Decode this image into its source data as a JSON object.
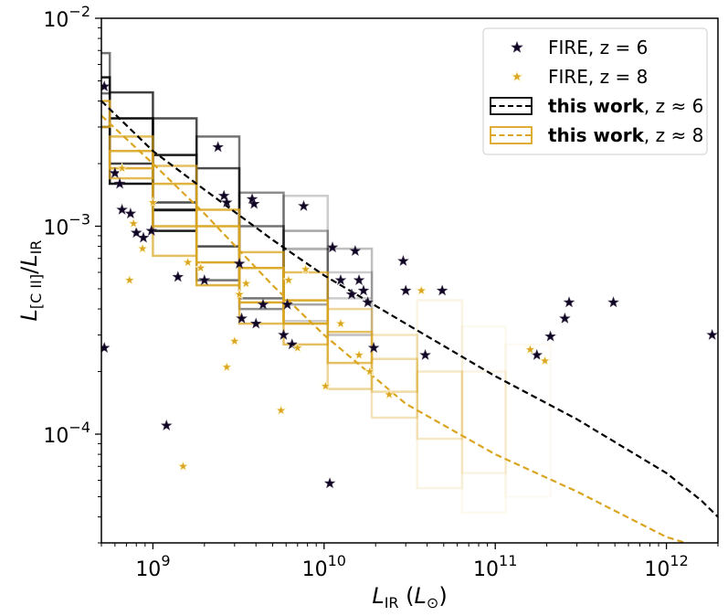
{
  "chart_data": {
    "type": "scatter",
    "xlabel": "L_IR (L_⊙)",
    "ylabel": "L_[C II]/L_IR",
    "xscale": "log",
    "yscale": "log",
    "xlim": [
      500000000.0,
      2000000000000.0
    ],
    "ylim": [
      3e-05,
      0.01
    ],
    "xticks": [
      {
        "base": "10",
        "exp": "9",
        "value": 1000000000.0
      },
      {
        "base": "10",
        "exp": "10",
        "value": 10000000000.0
      },
      {
        "base": "10",
        "exp": "11",
        "value": 100000000000.0
      },
      {
        "base": "10",
        "exp": "12",
        "value": 1000000000000.0
      }
    ],
    "yticks": [
      {
        "base": "10",
        "exp": "−4",
        "value": 0.0001
      },
      {
        "base": "10",
        "exp": "−3",
        "value": 0.001
      },
      {
        "base": "10",
        "exp": "−2",
        "value": 0.01
      }
    ],
    "grid": false,
    "legend_position": "top-right",
    "colors": {
      "z6": "#0d0221",
      "z8": "#daa520",
      "z6_line": "#000000",
      "z8_line": "#daa520"
    },
    "series": [
      {
        "name": "FIRE, z = 6",
        "label_main": "FIRE, z = 6",
        "marker": "star-filled",
        "color": "#0d0221",
        "points": [
          [
            520000000.0,
            0.0047
          ],
          [
            520000000.0,
            0.00026
          ],
          [
            600000000.0,
            0.0018
          ],
          [
            640000000.0,
            0.0016
          ],
          [
            660000000.0,
            0.0012
          ],
          [
            740000000.0,
            0.00115
          ],
          [
            800000000.0,
            0.00093
          ],
          [
            880000000.0,
            0.00088
          ],
          [
            980000000.0,
            0.00095
          ],
          [
            1200000000.0,
            0.00011
          ],
          [
            1400000000.0,
            0.00057
          ],
          [
            2000000000.0,
            0.00055
          ],
          [
            2400000000.0,
            0.0024
          ],
          [
            2600000000.0,
            0.0014
          ],
          [
            2700000000.0,
            0.0013
          ],
          [
            3200000000.0,
            0.00066
          ],
          [
            3300000000.0,
            0.00036
          ],
          [
            3800000000.0,
            0.00135
          ],
          [
            3900000000.0,
            0.00128
          ],
          [
            4000000000.0,
            0.00034
          ],
          [
            4400000000.0,
            0.00042
          ],
          [
            5800000000.0,
            0.0003
          ],
          [
            6100000000.0,
            0.00042
          ],
          [
            6500000000.0,
            0.00027
          ],
          [
            7600000000.0,
            0.00125
          ],
          [
            10800000000.0,
            5.8e-05
          ],
          [
            11200000000.0,
            0.00079
          ],
          [
            12500000000.0,
            0.00055
          ],
          [
            14500000000.0,
            0.00047
          ],
          [
            15200000000.0,
            0.00076
          ],
          [
            16000000000.0,
            0.00055
          ],
          [
            17000000000.0,
            0.00049
          ],
          [
            18000000000.0,
            0.00043
          ],
          [
            19500000000.0,
            0.00026
          ],
          [
            29000000000.0,
            0.00068
          ],
          [
            30000000000.0,
            0.00049
          ],
          [
            39000000000.0,
            0.00024
          ],
          [
            49000000000.0,
            0.00049
          ],
          [
            175000000000.0,
            0.00024
          ],
          [
            210000000000.0,
            0.000295
          ],
          [
            255000000000.0,
            0.00036
          ],
          [
            270000000000.0,
            0.00043
          ],
          [
            490000000000.0,
            0.00043
          ],
          [
            1850000000000.0,
            0.0003
          ]
        ]
      },
      {
        "name": "FIRE, z = 8",
        "label_main": "FIRE, z = 8",
        "marker": "star-filled",
        "color": "#daa520",
        "points": [
          [
            660000000.0,
            0.0019
          ],
          [
            730000000.0,
            0.00055
          ],
          [
            770000000.0,
            0.00103
          ],
          [
            870000000.0,
            0.00078
          ],
          [
            1000000000.0,
            0.0013
          ],
          [
            1500000000.0,
            7e-05
          ],
          [
            1600000000.0,
            0.00067
          ],
          [
            1900000000.0,
            0.00063
          ],
          [
            2700000000.0,
            0.00021
          ],
          [
            3000000000.0,
            0.00028
          ],
          [
            3200000000.0,
            0.00047
          ],
          [
            3500000000.0,
            0.00053
          ],
          [
            5600000000.0,
            0.00013
          ],
          [
            7000000000.0,
            0.00026
          ],
          [
            7800000000.0,
            0.00062
          ],
          [
            6200000000.0,
            0.00055
          ],
          [
            10200000000.0,
            0.00017
          ],
          [
            12500000000.0,
            0.00034
          ],
          [
            16000000000.0,
            0.00024
          ],
          [
            18500000000.0,
            0.0002
          ],
          [
            24000000000.0,
            0.000155
          ],
          [
            37000000000.0,
            0.00049
          ],
          [
            160000000000.0,
            0.000255
          ],
          [
            195000000000.0,
            0.000225
          ]
        ]
      },
      {
        "name": "this work, z ≈ 6",
        "label_bold": "this work",
        "label_rest": ", z ≈ 6",
        "style": "dashed",
        "color": "#000000",
        "line": [
          [
            500000000.0,
            0.004
          ],
          [
            1000000000.0,
            0.0023
          ],
          [
            2000000000.0,
            0.0015
          ],
          [
            5000000000.0,
            0.00086
          ],
          [
            10000000000.0,
            0.00058
          ],
          [
            30000000000.0,
            0.00034
          ],
          [
            100000000000.0,
            0.00019
          ],
          [
            300000000000.0,
            0.000118
          ],
          [
            1000000000000.0,
            6.5e-05
          ],
          [
            1600000000000.0,
            4.8e-05
          ],
          [
            2000000000000.0,
            4e-05
          ]
        ],
        "boxes": [
          [
            460000000.0,
            560000000.0,
            0.00435,
            0.0068,
            0.55
          ],
          [
            460000000.0,
            560000000.0,
            0.003,
            0.0052,
            0.9
          ],
          [
            560000000.0,
            1000000000.0,
            0.002,
            0.0044,
            0.75
          ],
          [
            560000000.0,
            1000000000.0,
            0.0016,
            0.0033,
            0.95
          ],
          [
            1000000000.0,
            1800000000.0,
            0.0013,
            0.0033,
            0.7
          ],
          [
            1000000000.0,
            1800000000.0,
            0.00095,
            0.0022,
            0.9
          ],
          [
            1000000000.0,
            1800000000.0,
            0.0012,
            0.0012,
            0.9
          ],
          [
            1800000000.0,
            3200000000.0,
            0.00055,
            0.0027,
            0.55
          ],
          [
            1800000000.0,
            3200000000.0,
            0.0008,
            0.0019,
            0.7
          ],
          [
            3200000000.0,
            5800000000.0,
            0.0004,
            0.00145,
            0.45
          ],
          [
            3200000000.0,
            5800000000.0,
            0.00045,
            0.001,
            0.55
          ],
          [
            5800000000.0,
            10500000000.0,
            0.00035,
            0.0014,
            0.2
          ],
          [
            5800000000.0,
            10500000000.0,
            0.00042,
            0.00095,
            0.35
          ],
          [
            5800000000.0,
            10500000000.0,
            0.00078,
            0.00078,
            0.3
          ],
          [
            10500000000.0,
            19000000000.0,
            0.0003,
            0.00078,
            0.25
          ],
          [
            10500000000.0,
            19000000000.0,
            0.00045,
            0.0006,
            0.2
          ]
        ]
      },
      {
        "name": "this work, z ≈ 8",
        "label_bold": "this work",
        "label_rest": ", z ≈ 8",
        "style": "dashed",
        "color": "#daa520",
        "line": [
          [
            500000000.0,
            0.0034
          ],
          [
            1000000000.0,
            0.002
          ],
          [
            2000000000.0,
            0.00115
          ],
          [
            5000000000.0,
            0.00052
          ],
          [
            10000000000.0,
            0.0003
          ],
          [
            30000000000.0,
            0.00014
          ],
          [
            100000000000.0,
            8e-05
          ],
          [
            300000000000.0,
            5.3e-05
          ],
          [
            1000000000000.0,
            3.2e-05
          ],
          [
            1300000000000.0,
            3e-05
          ]
        ],
        "boxes": [
          [
            460000000.0,
            560000000.0,
            0.003,
            0.004,
            0.85
          ],
          [
            560000000.0,
            1000000000.0,
            0.0017,
            0.0027,
            0.75
          ],
          [
            560000000.0,
            1000000000.0,
            0.0019,
            0.0023,
            0.9
          ],
          [
            1000000000.0,
            1800000000.0,
            0.00072,
            0.00195,
            0.7
          ],
          [
            1000000000.0,
            1800000000.0,
            0.001,
            0.0016,
            0.85
          ],
          [
            1800000000.0,
            3200000000.0,
            0.00052,
            0.0012,
            0.85
          ],
          [
            1800000000.0,
            3200000000.0,
            0.00067,
            0.001,
            0.95
          ],
          [
            3200000000.0,
            5800000000.0,
            0.00034,
            0.00075,
            0.75
          ],
          [
            3200000000.0,
            5800000000.0,
            0.00043,
            0.00063,
            0.95
          ],
          [
            5800000000.0,
            10500000000.0,
            0.00027,
            0.0006,
            0.7
          ],
          [
            5800000000.0,
            10500000000.0,
            0.00034,
            0.00044,
            0.95
          ],
          [
            10500000000.0,
            19000000000.0,
            0.000165,
            0.0004,
            0.45
          ],
          [
            10500000000.0,
            19000000000.0,
            0.00022,
            0.00031,
            0.7
          ],
          [
            19000000000.0,
            35000000000.0,
            0.00012,
            0.0003,
            0.3
          ],
          [
            19000000000.0,
            35000000000.0,
            0.00016,
            0.00023,
            0.4
          ],
          [
            35000000000.0,
            64000000000.0,
            9.5e-05,
            0.0002,
            0.25
          ],
          [
            35000000000.0,
            64000000000.0,
            5.5e-05,
            0.00044,
            0.12
          ],
          [
            64000000000.0,
            115000000000.0,
            6.5e-05,
            0.0002,
            0.12
          ],
          [
            64000000000.0,
            115000000000.0,
            4.2e-05,
            0.00033,
            0.07
          ],
          [
            115000000000.0,
            210000000000.0,
            5e-05,
            0.00027,
            0.05
          ]
        ]
      }
    ]
  }
}
